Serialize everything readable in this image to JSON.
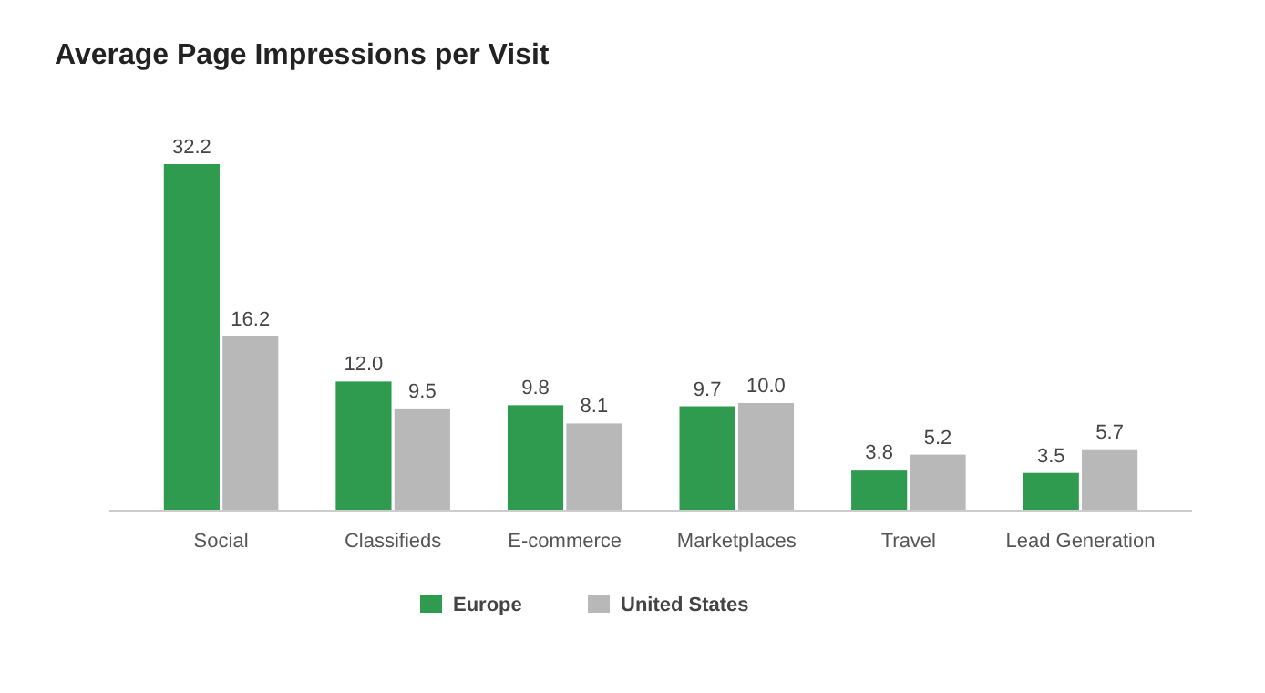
{
  "chart_data": {
    "type": "bar",
    "title": "Average Page Impressions per Visit",
    "categories": [
      "Social",
      "Classifieds",
      "E-commerce",
      "Marketplaces",
      "Travel",
      "Lead Generation"
    ],
    "series": [
      {
        "name": "Europe",
        "color": "#2e9b4e",
        "values": [
          32.2,
          12.0,
          9.8,
          9.7,
          3.8,
          3.5
        ],
        "value_labels": [
          "32.2",
          "12.0",
          "9.8",
          "9.7",
          "3.8",
          "3.5"
        ]
      },
      {
        "name": "United States",
        "color": "#b8b8b8",
        "values": [
          16.2,
          9.5,
          8.1,
          10.0,
          5.2,
          5.7
        ],
        "value_labels": [
          "16.2",
          "9.5",
          "8.1",
          "10.0",
          "5.2",
          "5.7"
        ]
      }
    ],
    "legend": "bottom"
  }
}
